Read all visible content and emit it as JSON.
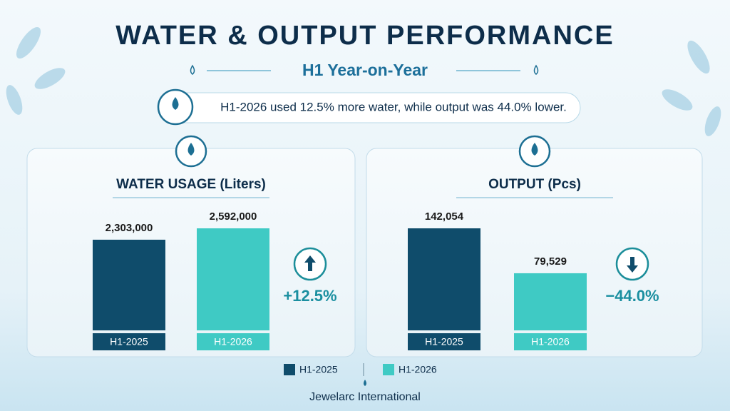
{
  "title": "WATER & OUTPUT PERFORMANCE",
  "subtitle": "H1 Year-on-Year",
  "summary": "H1-2026 used 12.5% more water, while output was 44.0% lower.",
  "footer": "Jewelarc International",
  "chart_data": [
    {
      "type": "bar",
      "title": "WATER USAGE (Liters)",
      "categories": [
        "H1-2025",
        "H1-2026"
      ],
      "values": [
        2303000,
        2592000
      ],
      "value_labels": [
        "2,303,000",
        "2,592,000"
      ],
      "colors": [
        "#0f4c6b",
        "#3fcac4"
      ],
      "change_label": "+12.5%"
    },
    {
      "type": "bar",
      "title": "OUTPUT (Pcs)",
      "categories": [
        "H1-2025",
        "H1-2026"
      ],
      "values": [
        142054,
        79529
      ],
      "value_labels": [
        "142,054",
        "79,529"
      ],
      "colors": [
        "#0f4c6b",
        "#3fcac4"
      ],
      "change_label": "−44.0%"
    }
  ]
}
